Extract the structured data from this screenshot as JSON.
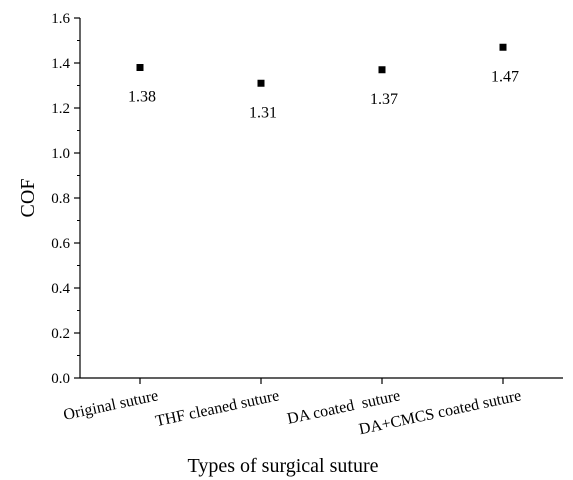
{
  "chart_data": {
    "type": "scatter",
    "categories": [
      "Original suture",
      "THF cleaned suture",
      "DA coated  suture",
      "DA+CMCS coated suture"
    ],
    "values": [
      1.38,
      1.31,
      1.37,
      1.47
    ],
    "value_labels": [
      "1.38",
      "1.31",
      "1.37",
      "1.47"
    ],
    "xlabel": "Types of surgical suture",
    "ylabel": "COF",
    "ylim": [
      0.0,
      1.6
    ],
    "yticks": [
      "0.0",
      "0.2",
      "0.4",
      "0.6",
      "0.8",
      "1.0",
      "1.2",
      "1.4",
      "1.6"
    ],
    "grid": false,
    "marker": "square",
    "marker_color": "#000000"
  }
}
